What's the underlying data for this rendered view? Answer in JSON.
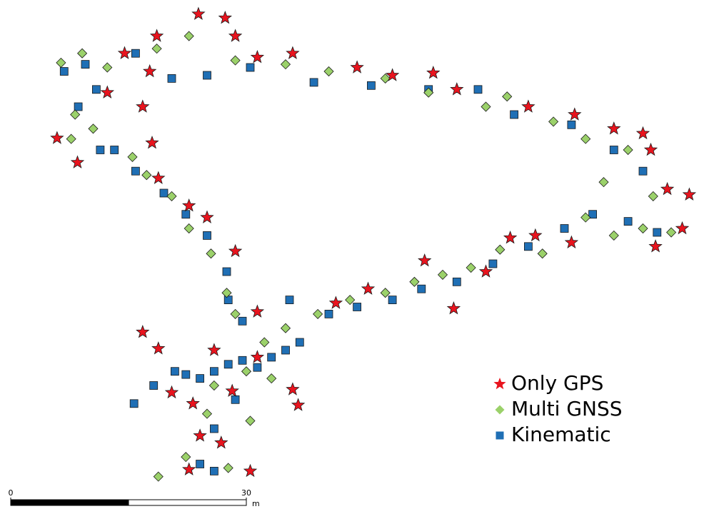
{
  "chart_data": {
    "type": "scatter",
    "scale": {
      "ticks": [
        0,
        30
      ],
      "unit": "m"
    },
    "series": [
      {
        "name": "Only GPS",
        "color": "#e8141e",
        "marker": "star",
        "x": [
          5.9,
          8.5,
          12.3,
          14.5,
          17.7,
          16.8,
          18.6,
          23.9,
          27.3,
          28.6,
          31.4,
          35.9,
          44.1,
          48.6,
          53.8,
          56.8,
          65.9,
          71.8,
          76.8,
          80.5,
          81.5,
          83.6,
          86.4,
          85.5,
          82.1,
          71.4,
          66.8,
          63.6,
          60.5,
          56.4,
          52.7,
          45.5,
          41.4,
          31.4,
          28.6,
          25.0,
          22.7,
          18.8,
          18.0,
          16.8,
          18.8,
          20.5,
          23.2,
          28.2,
          35.9,
          36.6,
          24.1,
          26.8,
          30.5,
          22.7,
          25.9,
          31.4
        ],
        "y": [
          46.5,
          43.4,
          52.3,
          57.3,
          55.0,
          50.5,
          59.5,
          62.3,
          61.8,
          59.5,
          56.8,
          57.3,
          55.5,
          54.5,
          54.8,
          52.7,
          50.5,
          49.5,
          47.7,
          47.1,
          45.0,
          40.0,
          39.3,
          35.0,
          32.7,
          33.2,
          34.1,
          33.8,
          29.5,
          24.8,
          30.9,
          27.3,
          25.5,
          24.4,
          32.1,
          36.4,
          37.9,
          41.4,
          45.9,
          21.8,
          19.7,
          14.1,
          12.7,
          14.3,
          14.5,
          12.5,
          8.6,
          7.7,
          4.1,
          4.3,
          19.5,
          18.6
        ]
      },
      {
        "name": "Multi GNSS",
        "color": "#9bd16a",
        "marker": "diamond",
        "x": [
          6.4,
          9.1,
          8.2,
          10.5,
          7.7,
          15.5,
          17.3,
          20.5,
          22.7,
          25.5,
          27.5,
          28.6,
          32.3,
          35.0,
          39.1,
          43.2,
          47.7,
          51.4,
          55.0,
          58.6,
          62.3,
          67.7,
          73.2,
          76.8,
          80.5,
          84.1,
          81.8,
          78.6,
          75.5,
          73.2,
          69.1,
          63.2,
          60.5,
          53.2,
          47.7,
          40.5,
          35.0,
          28.6,
          22.7,
          18.6,
          12.3,
          30.0,
          25.9,
          33.2,
          25.0,
          30.5,
          22.3,
          27.7,
          18.8
        ],
        "y": [
          56.1,
          57.3,
          49.5,
          47.7,
          46.4,
          44.1,
          41.8,
          39.1,
          35.0,
          31.8,
          26.8,
          24.1,
          20.5,
          22.3,
          24.1,
          25.9,
          26.8,
          28.2,
          29.1,
          30.0,
          32.3,
          31.8,
          36.4,
          34.1,
          35.0,
          34.5,
          39.1,
          45.0,
          40.9,
          46.4,
          48.6,
          51.8,
          50.5,
          52.3,
          54.1,
          55.0,
          55.9,
          56.4,
          59.5,
          57.9,
          55.5,
          16.8,
          15.0,
          15.9,
          11.4,
          10.5,
          5.9,
          4.5,
          3.4
        ]
      },
      {
        "name": "Kinematic",
        "color": "#1f6fb5",
        "marker": "square",
        "x": [
          6.8,
          9.5,
          10.9,
          8.6,
          11.4,
          13.2,
          15.9,
          19.5,
          22.3,
          25.0,
          27.5,
          27.7,
          29.5,
          25.9,
          27.7,
          29.5,
          31.4,
          33.2,
          22.3,
          20.9,
          24.1,
          35.0,
          36.8,
          40.5,
          44.1,
          48.6,
          52.3,
          56.8,
          61.4,
          65.9,
          70.5,
          74.1,
          78.6,
          82.3,
          80.5,
          76.8,
          71.4,
          64.1,
          59.5,
          53.2,
          45.9,
          38.6,
          30.5,
          25.0,
          20.5,
          15.9,
          18.2,
          15.7,
          28.6,
          25.9,
          24.1,
          25.9,
          35.5
        ],
        "y": [
          55.0,
          55.9,
          52.7,
          50.5,
          45.0,
          45.0,
          42.3,
          39.5,
          36.8,
          34.1,
          29.5,
          25.9,
          23.2,
          16.8,
          17.7,
          18.2,
          17.3,
          18.6,
          16.4,
          16.8,
          15.9,
          19.5,
          20.5,
          24.1,
          25.0,
          25.9,
          27.3,
          28.2,
          30.5,
          32.7,
          35.0,
          36.8,
          35.9,
          34.5,
          42.3,
          45.0,
          48.2,
          49.5,
          52.7,
          52.7,
          53.2,
          53.6,
          55.5,
          54.5,
          54.1,
          57.3,
          15.0,
          12.7,
          13.2,
          9.5,
          5.0,
          4.1,
          25.9
        ]
      }
    ]
  }
}
